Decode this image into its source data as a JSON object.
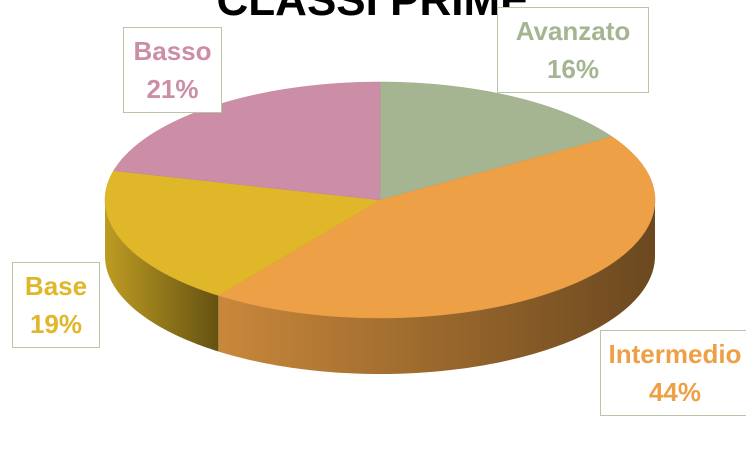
{
  "chart_data": {
    "type": "pie",
    "title": "CLASSI PRIME",
    "categories": [
      "Avanzato",
      "Intermedio",
      "Base",
      "Basso"
    ],
    "values": [
      16,
      44,
      19,
      21
    ],
    "value_labels": [
      "16%",
      "44%",
      "19%",
      "21%"
    ],
    "colors": [
      "#a5b592",
      "#eda045",
      "#e0b728",
      "#cc8ea6"
    ]
  }
}
